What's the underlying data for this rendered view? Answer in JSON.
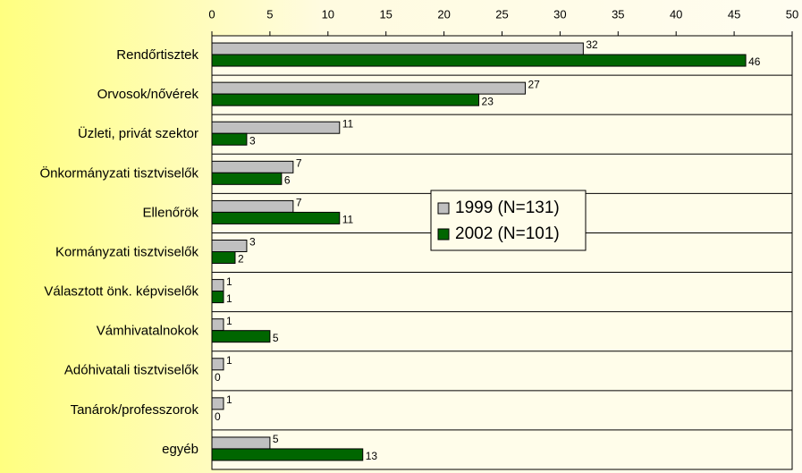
{
  "chart_data": {
    "type": "hbar",
    "categories": [
      "Rendőrtisztek",
      "Orvosok/nővérek",
      "Üzleti, privát szektor",
      "Önkormányzati tisztviselők",
      "Ellenőrök",
      "Kormányzati tisztviselők",
      "Választott önk. képviselők",
      "Vámhivatalnokok",
      "Adóhivatali tisztviselők",
      "Tanárok/professzorok",
      "egyéb"
    ],
    "series": [
      {
        "name": "1999 (N=131)",
        "color": "#c0c0c0",
        "values": [
          32,
          27,
          11,
          7,
          7,
          3,
          1,
          1,
          1,
          1,
          5
        ]
      },
      {
        "name": "2002 (N=101)",
        "color": "#006600",
        "values": [
          46,
          23,
          3,
          6,
          11,
          2,
          1,
          5,
          0,
          0,
          13
        ]
      }
    ],
    "xlim": [
      0,
      50
    ],
    "xticks": [
      0,
      5,
      10,
      15,
      20,
      25,
      30,
      35,
      40,
      45,
      50
    ],
    "legend": "center"
  }
}
